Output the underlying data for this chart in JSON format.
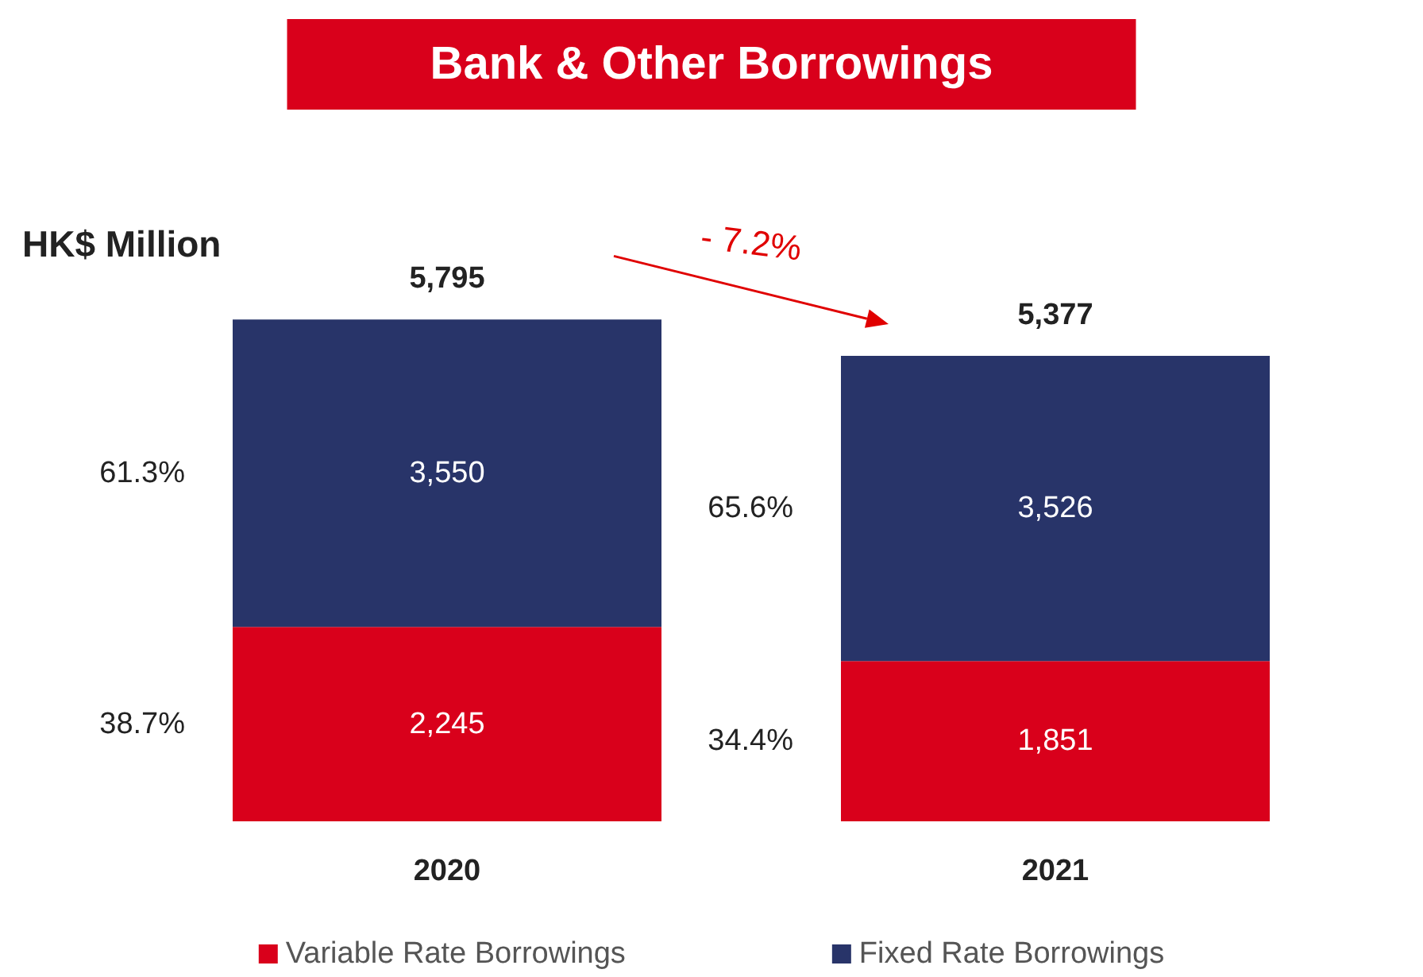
{
  "chart_data": {
    "type": "bar",
    "title": "Bank & Other Borrowings",
    "ylabel": "HK$ Million",
    "categories": [
      "2020",
      "2021"
    ],
    "stacked": true,
    "totals": [
      "5,795",
      "5,377"
    ],
    "legend": "bottom",
    "series": [
      {
        "name": "Variable Rate Borrowings",
        "color": "#d9001b",
        "values": [
          2245,
          1851
        ],
        "value_labels": [
          "2,245",
          "1,851"
        ]
      },
      {
        "name": "Fixed Rate Borrowings",
        "color": "#283469",
        "values": [
          3550,
          3526
        ],
        "value_labels": [
          "3,550",
          "3,526"
        ]
      }
    ],
    "annotations": [
      "61.3%",
      "38.7%",
      "65.6%",
      "34.4%",
      "- 7.2%"
    ]
  }
}
